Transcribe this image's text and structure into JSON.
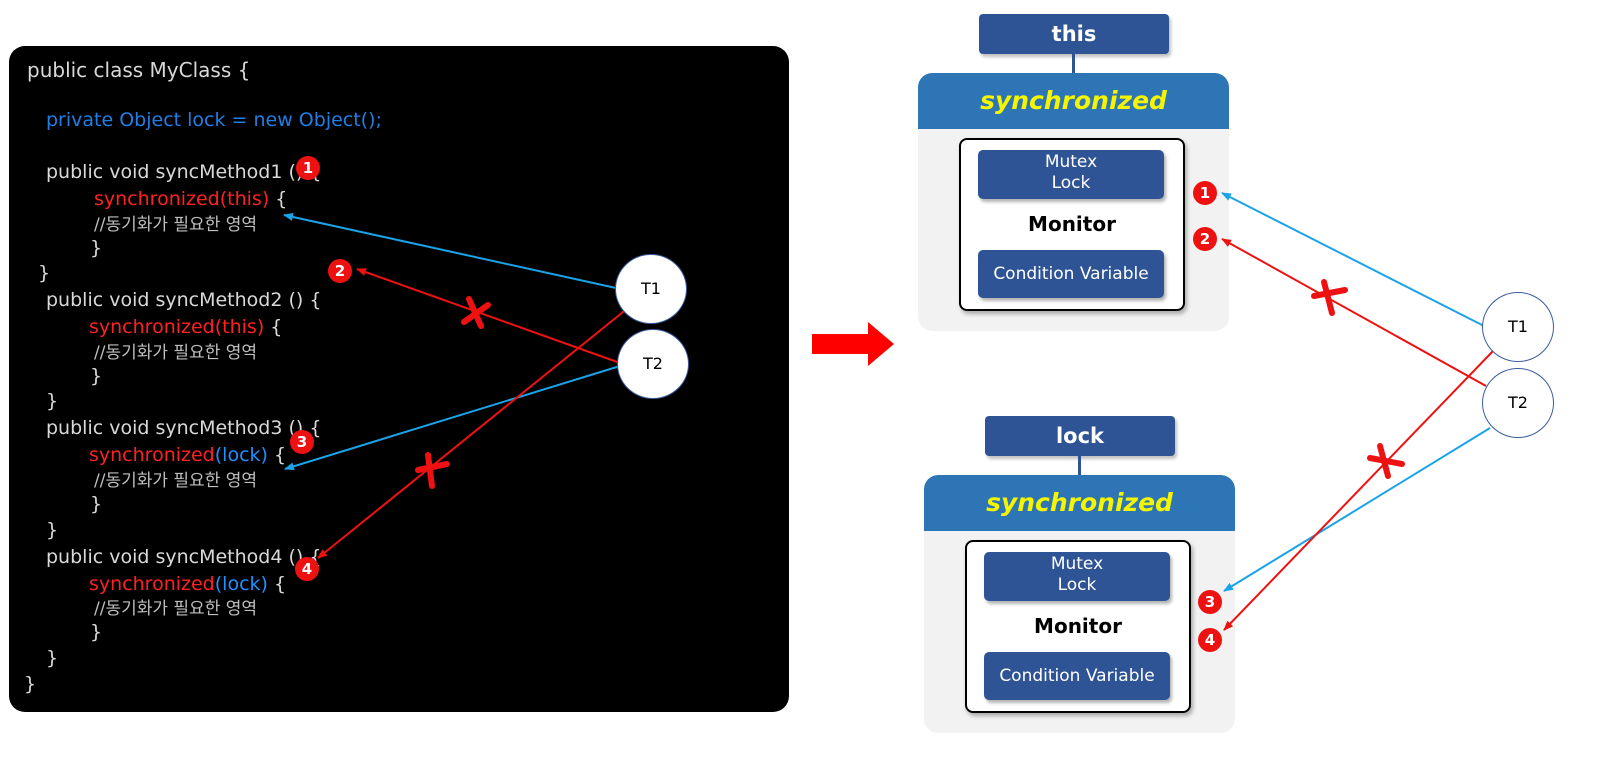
{
  "code": {
    "class_decl": "public class MyClass {",
    "field_decl": "private Object lock = new Object();",
    "methods": [
      {
        "signature": "public void syncMethod1 () {",
        "sync_kw": "synchronized",
        "sync_target": "(this)",
        "brace": " {",
        "comment": "//동기화가 필요한 영역",
        "close_inner": "}",
        "close_outer": "}"
      },
      {
        "signature": "public void syncMethod2 () {",
        "sync_kw": "synchronized",
        "sync_target": "(this)",
        "brace": " {",
        "comment": "//동기화가 필요한 영역",
        "close_inner": "}",
        "close_outer": "}"
      },
      {
        "signature": "public void syncMethod3 () {",
        "sync_kw": "synchronized",
        "sync_target": "(lock)",
        "brace": " {",
        "comment": "//동기화가 필요한 영역",
        "close_inner": "}",
        "close_outer": "}"
      },
      {
        "signature": "public void syncMethod4 () {",
        "sync_kw": "synchronized",
        "sync_target": "(lock)",
        "brace": " {",
        "comment": "//동기화가 필요한 영역",
        "close_inner": "}",
        "close_outer": "}"
      }
    ],
    "class_close": "}"
  },
  "badges": [
    "1",
    "2",
    "3",
    "4"
  ],
  "threads": [
    "T1",
    "T2"
  ],
  "monitors": [
    {
      "object": "this",
      "header": "synchronized",
      "mutex": "Mutex\nLock",
      "monitor": "Monitor",
      "condition": "Condition Variable"
    },
    {
      "object": "lock",
      "header": "synchronized",
      "mutex": "Mutex\nLock",
      "monitor": "Monitor",
      "condition": "Condition Variable"
    }
  ],
  "colors": {
    "code_bg": "#000000",
    "keyword_red": "#ff2020",
    "keyword_blue": "#1e90ff",
    "arrow_blue": "#1aa3e8",
    "arrow_red": "#ee1111",
    "box_blue": "#2f5496",
    "header_blue": "#2e75b6",
    "header_text": "#f5f500"
  }
}
